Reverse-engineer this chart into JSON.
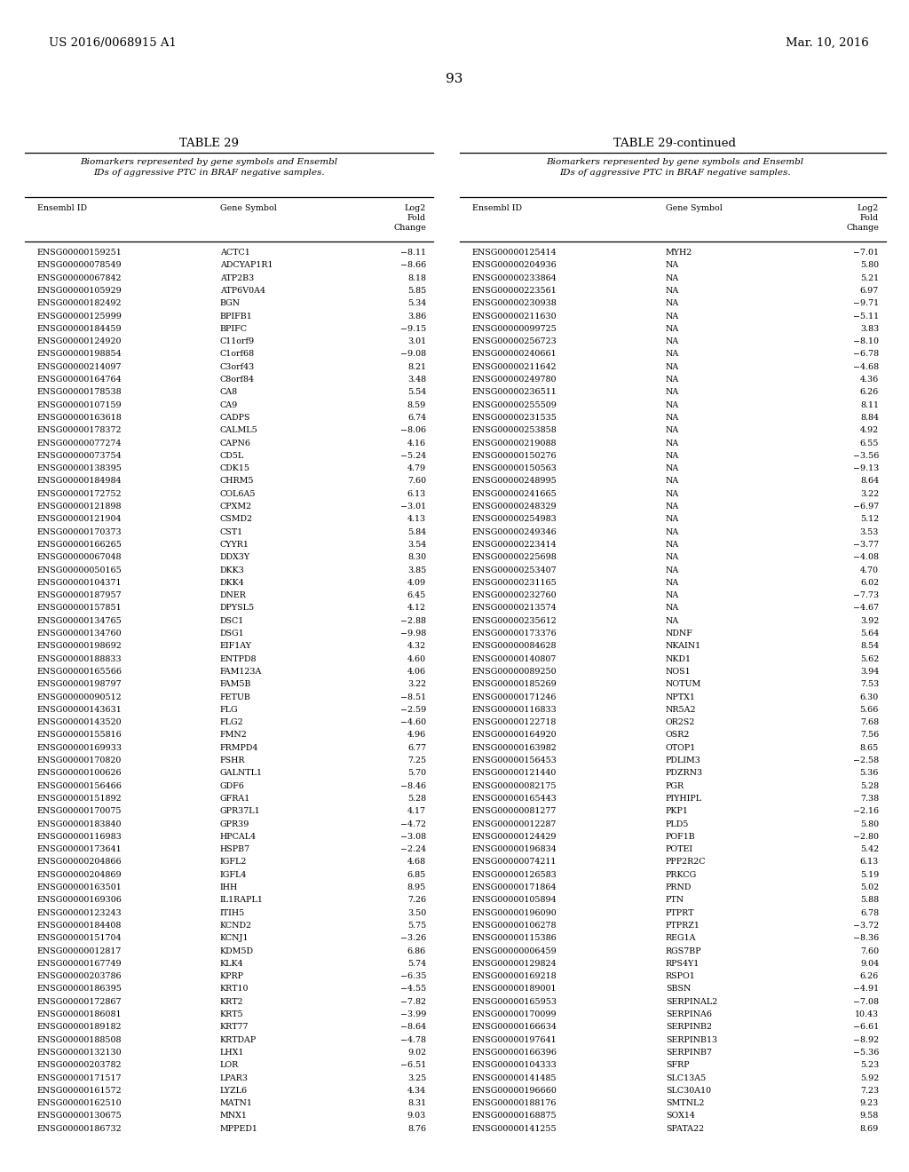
{
  "header_left": "US 2016/0068915 A1",
  "header_right": "Mar. 10, 2016",
  "page_number": "93",
  "table_title_left": "TABLE 29",
  "table_title_right": "TABLE 29-continued",
  "table_subtitle": "Biomarkers represented by gene symbols and Ensembl\nIDs of aggressive PTC in BRAF negative samples.",
  "col_headers": [
    "Ensembl ID",
    "Gene Symbol",
    "Log2\nFold\nChange"
  ],
  "left_data": [
    [
      "ENSG00000159251",
      "ACTC1",
      "−8.11"
    ],
    [
      "ENSG00000078549",
      "ADCYAP1R1",
      "−8.66"
    ],
    [
      "ENSG00000067842",
      "ATP2B3",
      "8.18"
    ],
    [
      "ENSG00000105929",
      "ATP6V0A4",
      "5.85"
    ],
    [
      "ENSG00000182492",
      "BGN",
      "5.34"
    ],
    [
      "ENSG00000125999",
      "BPIFB1",
      "3.86"
    ],
    [
      "ENSG00000184459",
      "BPIFC",
      "−9.15"
    ],
    [
      "ENSG00000124920",
      "C11orf9",
      "3.01"
    ],
    [
      "ENSG00000198854",
      "C1orf68",
      "−9.08"
    ],
    [
      "ENSG00000214097",
      "C3orf43",
      "8.21"
    ],
    [
      "ENSG00000164764",
      "C8orf84",
      "3.48"
    ],
    [
      "ENSG00000178538",
      "CA8",
      "5.54"
    ],
    [
      "ENSG00000107159",
      "CA9",
      "8.59"
    ],
    [
      "ENSG00000163618",
      "CADPS",
      "6.74"
    ],
    [
      "ENSG00000178372",
      "CALML5",
      "−8.06"
    ],
    [
      "ENSG00000077274",
      "CAPN6",
      "4.16"
    ],
    [
      "ENSG00000073754",
      "CD5L",
      "−5.24"
    ],
    [
      "ENSG00000138395",
      "CDK15",
      "4.79"
    ],
    [
      "ENSG00000184984",
      "CHRM5",
      "7.60"
    ],
    [
      "ENSG00000172752",
      "COL6A5",
      "6.13"
    ],
    [
      "ENSG00000121898",
      "CPXM2",
      "−3.01"
    ],
    [
      "ENSG00000121904",
      "CSMD2",
      "4.13"
    ],
    [
      "ENSG00000170373",
      "CST1",
      "5.84"
    ],
    [
      "ENSG00000166265",
      "CYYR1",
      "3.54"
    ],
    [
      "ENSG00000067048",
      "DDX3Y",
      "8.30"
    ],
    [
      "ENSG00000050165",
      "DKK3",
      "3.85"
    ],
    [
      "ENSG00000104371",
      "DKK4",
      "4.09"
    ],
    [
      "ENSG00000187957",
      "DNER",
      "6.45"
    ],
    [
      "ENSG00000157851",
      "DPYSL5",
      "4.12"
    ],
    [
      "ENSG00000134765",
      "DSC1",
      "−2.88"
    ],
    [
      "ENSG00000134760",
      "DSG1",
      "−9.98"
    ],
    [
      "ENSG00000198692",
      "EIF1AY",
      "4.32"
    ],
    [
      "ENSG00000188833",
      "ENTPD8",
      "4.60"
    ],
    [
      "ENSG00000165566",
      "FAM123A",
      "4.06"
    ],
    [
      "ENSG00000198797",
      "FAM5B",
      "3.22"
    ],
    [
      "ENSG00000090512",
      "FETUB",
      "−8.51"
    ],
    [
      "ENSG00000143631",
      "FLG",
      "−2.59"
    ],
    [
      "ENSG00000143520",
      "FLG2",
      "−4.60"
    ],
    [
      "ENSG00000155816",
      "FMN2",
      "4.96"
    ],
    [
      "ENSG00000169933",
      "FRMPD4",
      "6.77"
    ],
    [
      "ENSG00000170820",
      "FSHR",
      "7.25"
    ],
    [
      "ENSG00000100626",
      "GALNTL1",
      "5.70"
    ],
    [
      "ENSG00000156466",
      "GDF6",
      "−8.46"
    ],
    [
      "ENSG00000151892",
      "GFRA1",
      "5.28"
    ],
    [
      "ENSG00000170075",
      "GPR37L1",
      "4.17"
    ],
    [
      "ENSG00000183840",
      "GPR39",
      "−4.72"
    ],
    [
      "ENSG00000116983",
      "HPCAL4",
      "−3.08"
    ],
    [
      "ENSG00000173641",
      "HSPB7",
      "−2.24"
    ],
    [
      "ENSG00000204866",
      "IGFL2",
      "4.68"
    ],
    [
      "ENSG00000204869",
      "IGFL4",
      "6.85"
    ],
    [
      "ENSG00000163501",
      "IHH",
      "8.95"
    ],
    [
      "ENSG00000169306",
      "IL1RAPL1",
      "7.26"
    ],
    [
      "ENSG00000123243",
      "ITIH5",
      "3.50"
    ],
    [
      "ENSG00000184408",
      "KCND2",
      "5.75"
    ],
    [
      "ENSG00000151704",
      "KCNJ1",
      "−3.26"
    ],
    [
      "ENSG00000012817",
      "KDM5D",
      "6.86"
    ],
    [
      "ENSG00000167749",
      "KLK4",
      "5.74"
    ],
    [
      "ENSG00000203786",
      "KPRP",
      "−6.35"
    ],
    [
      "ENSG00000186395",
      "KRT10",
      "−4.55"
    ],
    [
      "ENSG00000172867",
      "KRT2",
      "−7.82"
    ],
    [
      "ENSG00000186081",
      "KRT5",
      "−3.99"
    ],
    [
      "ENSG00000189182",
      "KRT77",
      "−8.64"
    ],
    [
      "ENSG00000188508",
      "KRTDAP",
      "−4.78"
    ],
    [
      "ENSG00000132130",
      "LHX1",
      "9.02"
    ],
    [
      "ENSG00000203782",
      "LOR",
      "−6.51"
    ],
    [
      "ENSG00000171517",
      "LPAR3",
      "3.25"
    ],
    [
      "ENSG00000161572",
      "LYZL6",
      "4.34"
    ],
    [
      "ENSG00000162510",
      "MATN1",
      "8.31"
    ],
    [
      "ENSG00000130675",
      "MNX1",
      "9.03"
    ],
    [
      "ENSG00000186732",
      "MPPED1",
      "8.76"
    ]
  ],
  "right_data": [
    [
      "ENSG00000125414",
      "MYH2",
      "−7.01"
    ],
    [
      "ENSG00000204936",
      "NA",
      "5.80"
    ],
    [
      "ENSG00000233864",
      "NA",
      "5.21"
    ],
    [
      "ENSG00000223561",
      "NA",
      "6.97"
    ],
    [
      "ENSG00000230938",
      "NA",
      "−9.71"
    ],
    [
      "ENSG00000211630",
      "NA",
      "−5.11"
    ],
    [
      "ENSG00000099725",
      "NA",
      "3.83"
    ],
    [
      "ENSG00000256723",
      "NA",
      "−8.10"
    ],
    [
      "ENSG00000240661",
      "NA",
      "−6.78"
    ],
    [
      "ENSG00000211642",
      "NA",
      "−4.68"
    ],
    [
      "ENSG00000249780",
      "NA",
      "4.36"
    ],
    [
      "ENSG00000236511",
      "NA",
      "6.26"
    ],
    [
      "ENSG00000255509",
      "NA",
      "8.11"
    ],
    [
      "ENSG00000231535",
      "NA",
      "8.84"
    ],
    [
      "ENSG00000253858",
      "NA",
      "4.92"
    ],
    [
      "ENSG00000219088",
      "NA",
      "6.55"
    ],
    [
      "ENSG00000150276",
      "NA",
      "−3.56"
    ],
    [
      "ENSG00000150563",
      "NA",
      "−9.13"
    ],
    [
      "ENSG00000248995",
      "NA",
      "8.64"
    ],
    [
      "ENSG00000241665",
      "NA",
      "3.22"
    ],
    [
      "ENSG00000248329",
      "NA",
      "−6.97"
    ],
    [
      "ENSG00000254983",
      "NA",
      "5.12"
    ],
    [
      "ENSG00000249346",
      "NA",
      "3.53"
    ],
    [
      "ENSG00000223414",
      "NA",
      "−3.77"
    ],
    [
      "ENSG00000225698",
      "NA",
      "−4.08"
    ],
    [
      "ENSG00000253407",
      "NA",
      "4.70"
    ],
    [
      "ENSG00000231165",
      "NA",
      "6.02"
    ],
    [
      "ENSG00000232760",
      "NA",
      "−7.73"
    ],
    [
      "ENSG00000213574",
      "NA",
      "−4.67"
    ],
    [
      "ENSG00000235612",
      "NA",
      "3.92"
    ],
    [
      "ENSG00000173376",
      "NDNF",
      "5.64"
    ],
    [
      "ENSG00000084628",
      "NKAIN1",
      "8.54"
    ],
    [
      "ENSG00000140807",
      "NKD1",
      "5.62"
    ],
    [
      "ENSG00000089250",
      "NOS1",
      "3.94"
    ],
    [
      "ENSG00000185269",
      "NOTUM",
      "7.53"
    ],
    [
      "ENSG00000171246",
      "NPTX1",
      "6.30"
    ],
    [
      "ENSG00000116833",
      "NR5A2",
      "5.66"
    ],
    [
      "ENSG00000122718",
      "OR2S2",
      "7.68"
    ],
    [
      "ENSG00000164920",
      "OSR2",
      "7.56"
    ],
    [
      "ENSG00000163982",
      "OTOP1",
      "8.65"
    ],
    [
      "ENSG00000156453",
      "PDLIM3",
      "−2.58"
    ],
    [
      "ENSG00000121440",
      "PDZRN3",
      "5.36"
    ],
    [
      "ENSG00000082175",
      "PGR",
      "5.28"
    ],
    [
      "ENSG00000165443",
      "PIYHIPL",
      "7.38"
    ],
    [
      "ENSG00000081277",
      "PKP1",
      "−2.16"
    ],
    [
      "ENSG00000012287",
      "PLD5",
      "5.80"
    ],
    [
      "ENSG00000124429",
      "POF1B",
      "−2.80"
    ],
    [
      "ENSG00000196834",
      "POTEI",
      "5.42"
    ],
    [
      "ENSG00000074211",
      "PPP2R2C",
      "6.13"
    ],
    [
      "ENSG00000126583",
      "PRKCG",
      "5.19"
    ],
    [
      "ENSG00000171864",
      "PRND",
      "5.02"
    ],
    [
      "ENSG00000105894",
      "PTN",
      "5.88"
    ],
    [
      "ENSG00000196090",
      "PTPRT",
      "6.78"
    ],
    [
      "ENSG00000106278",
      "PTPRZ1",
      "−3.72"
    ],
    [
      "ENSG00000115386",
      "REG1A",
      "−8.36"
    ],
    [
      "ENSG00000006459",
      "RGS7BP",
      "7.60"
    ],
    [
      "ENSG00000129824",
      "RPS4Y1",
      "9.04"
    ],
    [
      "ENSG00000169218",
      "RSPO1",
      "6.26"
    ],
    [
      "ENSG00000189001",
      "SBSN",
      "−4.91"
    ],
    [
      "ENSG00000165953",
      "SERPINAL2",
      "−7.08"
    ],
    [
      "ENSG00000170099",
      "SERPINA6",
      "10.43"
    ],
    [
      "ENSG00000166634",
      "SERPINB2",
      "−6.61"
    ],
    [
      "ENSG00000197641",
      "SERPINB13",
      "−8.92"
    ],
    [
      "ENSG00000166396",
      "SERPINB7",
      "−5.36"
    ],
    [
      "ENSG00000104333",
      "SFRP",
      "5.23"
    ],
    [
      "ENSG00000141485",
      "SLC13A5",
      "5.92"
    ],
    [
      "ENSG00000196660",
      "SLC30A10",
      "7.23"
    ],
    [
      "ENSG00000188176",
      "SMTNL2",
      "9.23"
    ],
    [
      "ENSG00000168875",
      "SOX14",
      "9.58"
    ],
    [
      "ENSG00000141255",
      "SPATA22",
      "8.69"
    ]
  ],
  "bg_color": "#ffffff",
  "text_color": "#000000",
  "font_size": 6.8,
  "header_font_size": 10,
  "fig_width": 10.24,
  "fig_height": 13.2,
  "fig_dpi": 100
}
